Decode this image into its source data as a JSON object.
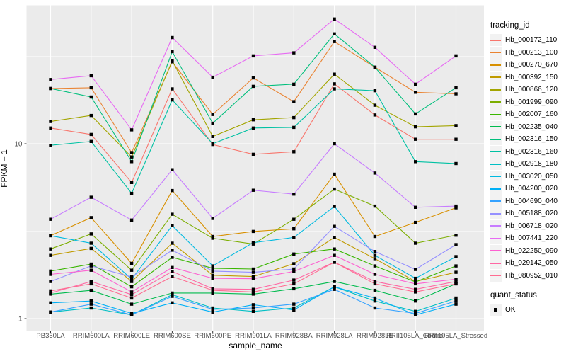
{
  "chart_data": {
    "type": "line",
    "title": "",
    "xlabel": "sample_name",
    "ylabel": "FPKM + 1",
    "y_scale": "log10",
    "y_tick_labels": [
      "1",
      "10"
    ],
    "y_tick_values": [
      1,
      10
    ],
    "y_minor_values": [
      3.162,
      31.62
    ],
    "ylim": [
      1,
      60
    ],
    "grid": "on",
    "legend_position": "right",
    "categories": [
      "PB350LA",
      "RRIM600LA",
      "RRIM600LE",
      "RRIM600SE",
      "RRIM600PE",
      "RRIM901LA",
      "RRIM928BA",
      "RRIM928LA",
      "RRIM928LE",
      "RRII105LA_Control",
      "RRII105LA_Stressed"
    ],
    "series": [
      {
        "name": "Hb_000172_110",
        "color": "#F8766D",
        "values": [
          12.3,
          11.3,
          6.0,
          20.6,
          9.9,
          8.7,
          9.0,
          22.0,
          14.6,
          10.6,
          10.6
        ]
      },
      {
        "name": "Hb_000213_100",
        "color": "#EA8331",
        "values": [
          20.7,
          20.9,
          8.9,
          29.4,
          14.7,
          23.8,
          17.4,
          38.4,
          27.4,
          19.7,
          19.3
        ]
      },
      {
        "name": "Hb_000270_670",
        "color": "#D89000",
        "values": [
          2.98,
          3.78,
          2.07,
          5.4,
          2.95,
          3.15,
          3.26,
          6.7,
          2.95,
          3.55,
          4.3
        ]
      },
      {
        "name": "Hb_000392_150",
        "color": "#C09B00",
        "values": [
          2.3,
          2.52,
          1.63,
          2.7,
          1.77,
          1.74,
          2.06,
          2.91,
          2.2,
          1.63,
          1.84
        ]
      },
      {
        "name": "Hb_000866_120",
        "color": "#A3A500",
        "values": [
          13.4,
          14.5,
          8.4,
          29.8,
          11.0,
          13.7,
          14.1,
          25.0,
          16.6,
          12.5,
          12.7
        ]
      },
      {
        "name": "Hb_001999_090",
        "color": "#7CAE00",
        "values": [
          2.5,
          3.05,
          1.89,
          3.95,
          2.88,
          2.67,
          3.7,
          5.5,
          4.4,
          2.7,
          3.0
        ]
      },
      {
        "name": "Hb_002007_160",
        "color": "#39B600",
        "values": [
          1.87,
          2.05,
          1.52,
          2.24,
          1.94,
          1.92,
          2.34,
          2.5,
          2.0,
          1.62,
          2.0
        ]
      },
      {
        "name": "Hb_002235_040",
        "color": "#00BB4E",
        "values": [
          1.38,
          1.45,
          1.21,
          1.4,
          1.4,
          1.38,
          1.48,
          1.63,
          1.45,
          1.26,
          1.58
        ]
      },
      {
        "name": "Hb_002316_150",
        "color": "#00BF7C",
        "values": [
          20.7,
          18.5,
          7.9,
          33.6,
          13.1,
          21.3,
          21.9,
          42.5,
          27.4,
          14.8,
          20.9
        ]
      },
      {
        "name": "Hb_002316_160",
        "color": "#00C1A3",
        "values": [
          9.8,
          10.3,
          5.2,
          17.8,
          10.0,
          12.3,
          12.4,
          20.6,
          20.1,
          7.9,
          7.7
        ]
      },
      {
        "name": "Hb_002918_180",
        "color": "#00BFC4",
        "values": [
          1.09,
          1.15,
          1.05,
          1.37,
          1.15,
          1.1,
          1.15,
          1.52,
          1.26,
          1.1,
          1.31
        ]
      },
      {
        "name": "Hb_003020_050",
        "color": "#00BAE0",
        "values": [
          2.98,
          2.7,
          1.68,
          3.4,
          2.0,
          2.72,
          2.91,
          4.38,
          2.3,
          1.7,
          2.26
        ]
      },
      {
        "name": "Hb_004200_020",
        "color": "#00B0F6",
        "values": [
          1.23,
          1.26,
          1.07,
          1.23,
          1.09,
          1.2,
          1.12,
          1.52,
          1.31,
          1.05,
          1.21
        ]
      },
      {
        "name": "Hb_004690_040",
        "color": "#35A2FF",
        "values": [
          1.09,
          1.21,
          1.05,
          1.34,
          1.13,
          1.15,
          1.21,
          1.47,
          1.15,
          1.07,
          1.26
        ]
      },
      {
        "name": "Hb_005188_020",
        "color": "#9590FF",
        "values": [
          1.63,
          2.0,
          1.73,
          2.46,
          1.87,
          1.84,
          1.92,
          3.37,
          2.42,
          1.91,
          2.65
        ]
      },
      {
        "name": "Hb_006718_020",
        "color": "#C77CFF",
        "values": [
          3.7,
          4.94,
          3.66,
          7.1,
          3.74,
          5.42,
          5.15,
          10.0,
          6.8,
          4.33,
          4.4
        ]
      },
      {
        "name": "Hb_007441_220",
        "color": "#E76BF3",
        "values": [
          23.3,
          24.5,
          12.0,
          40.5,
          24.0,
          31.8,
          33.1,
          51.7,
          35.6,
          21.9,
          31.8
        ]
      },
      {
        "name": "Hb_022250_090",
        "color": "#FD61D1",
        "values": [
          1.79,
          1.89,
          1.42,
          1.96,
          1.7,
          1.69,
          1.86,
          2.3,
          1.79,
          1.58,
          1.68
        ]
      },
      {
        "name": "Hb_029142_050",
        "color": "#FF67A4",
        "values": [
          1.4,
          1.63,
          1.37,
          1.86,
          1.48,
          1.47,
          1.66,
          2.1,
          1.63,
          1.47,
          1.63
        ]
      },
      {
        "name": "Hb_080952_010",
        "color": "#FF6C91",
        "values": [
          1.44,
          1.58,
          1.31,
          1.74,
          1.45,
          1.42,
          1.58,
          2.1,
          1.58,
          1.42,
          1.58
        ]
      }
    ],
    "legend": {
      "title": "tracking_id",
      "quant_title": "quant_status",
      "quant_items": [
        "OK"
      ]
    },
    "styles": {
      "panel_bg": "#EBEBEB",
      "grid": "#FFFFFF",
      "tick": "#333333",
      "tick_label": "#4D4D4D",
      "point": "#000000",
      "legend_key": "#F2F2F2"
    }
  }
}
